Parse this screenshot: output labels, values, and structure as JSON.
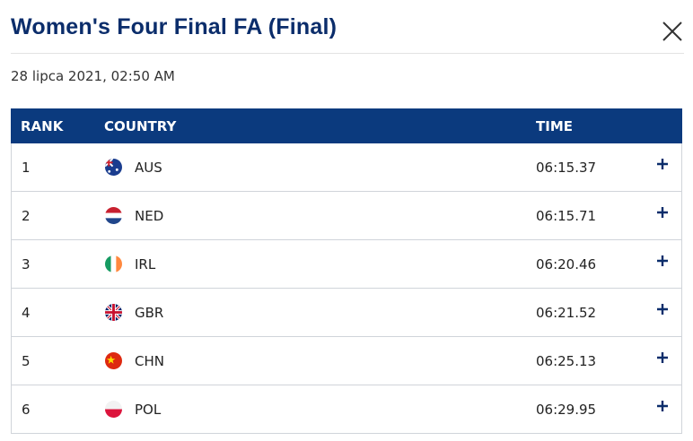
{
  "header": {
    "title": "Women's Four Final FA (Final)",
    "date": "28 lipca 2021, 02:50 AM"
  },
  "table": {
    "columns": [
      "RANK",
      "COUNTRY",
      "TIME"
    ],
    "rows": [
      [
        "1",
        "AUS",
        "06:15.37"
      ],
      [
        "2",
        "NED",
        "06:15.71"
      ],
      [
        "3",
        "IRL",
        "06:20.46"
      ],
      [
        "4",
        "GBR",
        "06:21.52"
      ],
      [
        "5",
        "CHN",
        "06:25.13"
      ],
      [
        "6",
        "POL",
        "06:29.95"
      ]
    ]
  }
}
